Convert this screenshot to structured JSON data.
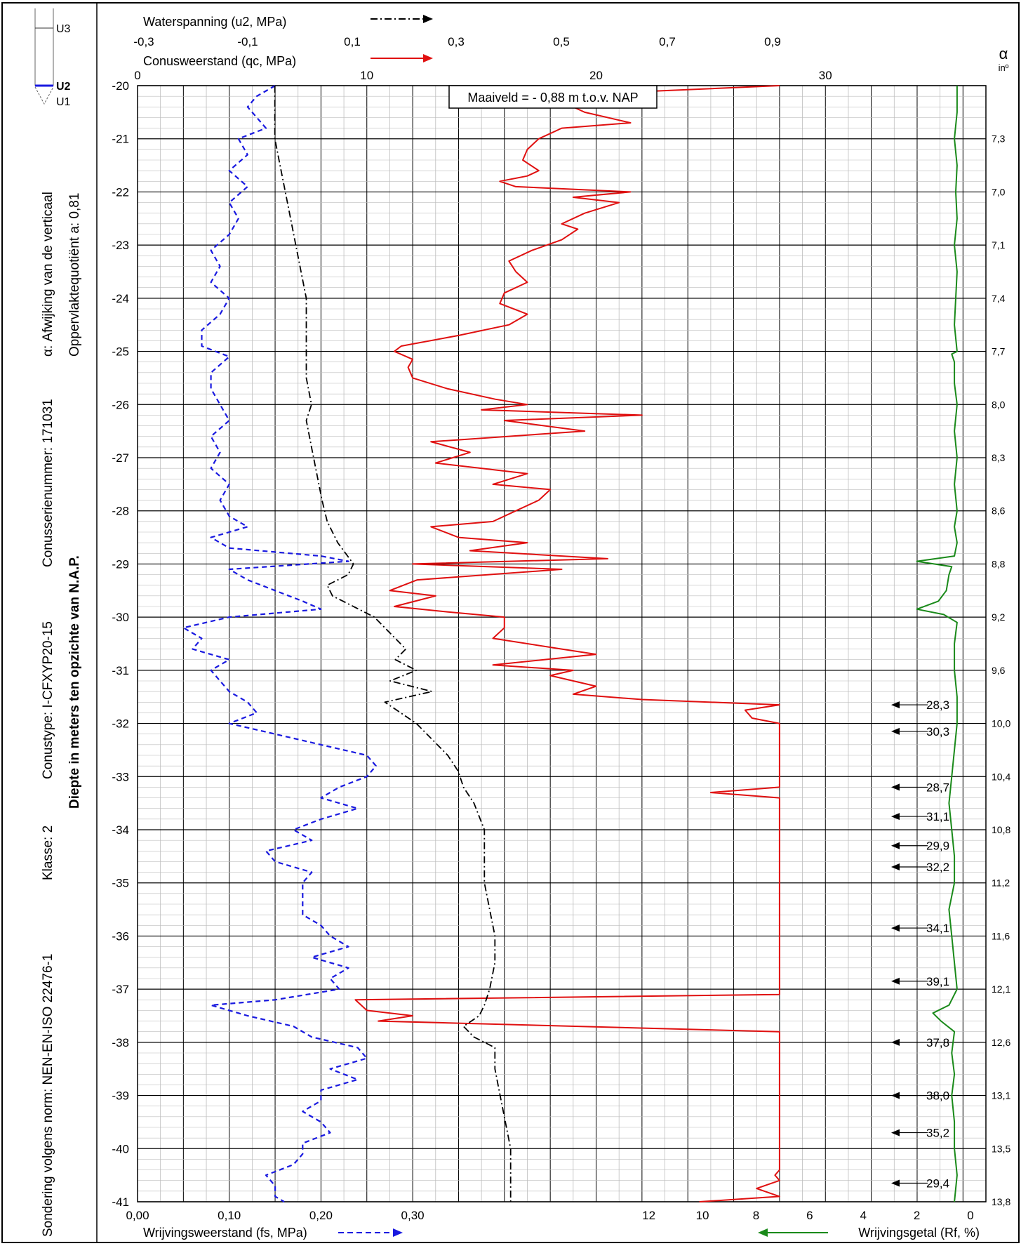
{
  "chart_data": {
    "type": "line",
    "title": "",
    "side_labels": {
      "norm": "Sondering volgens norm: NEN-EN-ISO 22476-1",
      "klasse": "Klasse: 2",
      "conustype": "Conustype: I-CFXYP20-15",
      "serienummer": "Conusserienummer: 171031",
      "alpha": "α: Afwijking van de verticaal",
      "oppervlakte": "Oppervlaktequotiënt a: 0,81",
      "depth_axis": "Diepte in meters ten opzichte van N.A.P."
    },
    "cone_legend": {
      "u3": "U3",
      "u2": "U2",
      "u1": "U1"
    },
    "ground_level": "Maaiveld = - 0,88 m t.o.v. NAP",
    "alpha_axis": {
      "symbol": "α",
      "unit": "inº"
    },
    "colors": {
      "qc": "#e01010",
      "fs": "#1a1ae0",
      "u2": "#000000",
      "rf": "#1a8a1a",
      "grid": "#000000",
      "minor_grid": "#bdbdbd",
      "u2_marker": "#1a1ae0"
    },
    "axes": {
      "depth": {
        "min": -41,
        "max": -20,
        "ticks": [
          "-20",
          "-21",
          "-22",
          "-23",
          "-24",
          "-25",
          "-26",
          "-27",
          "-28",
          "-29",
          "-30",
          "-31",
          "-32",
          "-33",
          "-34",
          "-35",
          "-36",
          "-37",
          "-38",
          "-39",
          "-40",
          "-41"
        ]
      },
      "u2": {
        "label": "Waterspanning (u2, MPa)",
        "min": -0.3,
        "max": 0.9,
        "ticks": [
          "-0,3",
          "-0,1",
          "0,1",
          "0,3",
          "0,5",
          "0,7",
          "0,9"
        ],
        "tick_values": [
          -0.3,
          -0.1,
          0.1,
          0.3,
          0.5,
          0.7,
          0.9
        ]
      },
      "qc": {
        "label": "Conusweerstand (qc, MPa)",
        "min": 0,
        "max": 30,
        "ticks": [
          "0",
          "10",
          "20",
          "30"
        ],
        "tick_values": [
          0,
          10,
          20,
          30
        ]
      },
      "fs": {
        "label": "Wrijvingsweerstand (fs, MPa)",
        "min": 0,
        "max": 0.3,
        "ticks": [
          "0,00",
          "0,10",
          "0,20",
          "0,30"
        ],
        "tick_values": [
          0,
          0.1,
          0.2,
          0.3
        ]
      },
      "rf": {
        "label": "Wrijvingsgetal (Rf, %)",
        "ticks": [
          "12",
          "10",
          "8",
          "6",
          "4",
          "2",
          "0"
        ],
        "tick_values": [
          12,
          10,
          8,
          6,
          4,
          2,
          0
        ]
      }
    },
    "alpha_values": [
      {
        "depth": -21,
        "label": "7,3"
      },
      {
        "depth": -22,
        "label": "7,0"
      },
      {
        "depth": -23,
        "label": "7,1"
      },
      {
        "depth": -24,
        "label": "7,4"
      },
      {
        "depth": -25,
        "label": "7,7"
      },
      {
        "depth": -26,
        "label": "8,0"
      },
      {
        "depth": -27,
        "label": "8,3"
      },
      {
        "depth": -28,
        "label": "8,6"
      },
      {
        "depth": -29,
        "label": "8,8"
      },
      {
        "depth": -30,
        "label": "9,2"
      },
      {
        "depth": -31,
        "label": "9,6"
      },
      {
        "depth": -32,
        "label": "10,0"
      },
      {
        "depth": -33,
        "label": "10,4"
      },
      {
        "depth": -34,
        "label": "10,8"
      },
      {
        "depth": -35,
        "label": "11,2"
      },
      {
        "depth": -36,
        "label": "11,6"
      },
      {
        "depth": -37,
        "label": "12,1"
      },
      {
        "depth": -38,
        "label": "12,6"
      },
      {
        "depth": -39,
        "label": "13,1"
      },
      {
        "depth": -40,
        "label": "13,5"
      },
      {
        "depth": -41,
        "label": "13,8"
      }
    ],
    "qc_cutoff_annotations": [
      {
        "depth": -31.65,
        "label": "28,3"
      },
      {
        "depth": -32.15,
        "label": "30,3"
      },
      {
        "depth": -33.2,
        "label": "28,7"
      },
      {
        "depth": -33.75,
        "label": "31,1"
      },
      {
        "depth": -34.3,
        "label": "29,9"
      },
      {
        "depth": -34.7,
        "label": "32,2"
      },
      {
        "depth": -35.85,
        "label": "34,1"
      },
      {
        "depth": -36.85,
        "label": "39,1"
      },
      {
        "depth": -38.0,
        "label": "37,8"
      },
      {
        "depth": -39.0,
        "label": "38,0"
      },
      {
        "depth": -39.7,
        "label": "35,2"
      },
      {
        "depth": -40.65,
        "label": "29,4"
      }
    ],
    "series": [
      {
        "name": "qc",
        "depth": [
          -20,
          -20.15,
          -20.3,
          -20.5,
          -20.7,
          -20.8,
          -21.0,
          -21.2,
          -21.4,
          -21.6,
          -21.7,
          -21.8,
          -21.9,
          -22.0,
          -22.1,
          -22.2,
          -22.4,
          -22.6,
          -22.7,
          -22.9,
          -23.1,
          -23.3,
          -23.5,
          -23.7,
          -23.9,
          -24.1,
          -24.3,
          -24.5,
          -24.7,
          -24.9,
          -25.0,
          -25.15,
          -25.3,
          -25.5,
          -25.7,
          -25.9,
          -26.0,
          -26.1,
          -26.2,
          -26.3,
          -26.5,
          -26.7,
          -26.9,
          -27.1,
          -27.3,
          -27.5,
          -27.6,
          -27.8,
          -28.0,
          -28.2,
          -28.3,
          -28.5,
          -28.6,
          -28.75,
          -28.9,
          -29.0,
          -29.1,
          -29.3,
          -29.5,
          -29.6,
          -29.8,
          -29.9,
          -30.0,
          -30.2,
          -30.4,
          -30.6,
          -30.7,
          -30.9,
          -31.0,
          -31.1,
          -31.3,
          -31.45,
          -31.55,
          -31.65,
          -31.75,
          -31.9,
          -32.0,
          -32.15,
          -33.2,
          -33.3,
          -33.4,
          -34.0,
          -34.1,
          -34.2,
          -35.0,
          -35.05,
          -35.5,
          -35.6,
          -37.1,
          -37.2,
          -37.4,
          -37.5,
          -37.6,
          -37.8,
          -40.4,
          -40.5,
          -40.6,
          -40.75,
          -40.9,
          -41.0
        ],
        "values": [
          28.5,
          20,
          18.5,
          19.5,
          21.5,
          18.5,
          17.5,
          17,
          16.8,
          17.5,
          17,
          15.8,
          16.5,
          21.5,
          19,
          21,
          19.5,
          18.5,
          19.2,
          18.5,
          17.2,
          16.2,
          16.5,
          17,
          16,
          15.8,
          17,
          16.2,
          14,
          11.5,
          11.2,
          12,
          11.8,
          12,
          13.5,
          15.6,
          17,
          15,
          22,
          16,
          19.5,
          12.8,
          14.5,
          13,
          17,
          15.5,
          18,
          17.5,
          16.5,
          15.5,
          12.8,
          14,
          17,
          14.5,
          20.5,
          12,
          18.5,
          12.2,
          11,
          13,
          11.2,
          13.5,
          16,
          16,
          15.5,
          18.5,
          20,
          15.5,
          19,
          18,
          20,
          19,
          22,
          28.3,
          26.5,
          26.8,
          28,
          30.3,
          28.7,
          25,
          28.7,
          31.1,
          30,
          29.9,
          31.5,
          29.5,
          31,
          32.2,
          39.1,
          9.5,
          10,
          12,
          10.5,
          37.8,
          35.2,
          27.8,
          29.4,
          27,
          29,
          24.5
        ]
      },
      {
        "name": "fs",
        "depth": [
          -20,
          -20.2,
          -20.4,
          -20.6,
          -20.8,
          -21.0,
          -21.3,
          -21.6,
          -21.9,
          -22.2,
          -22.5,
          -22.8,
          -23.1,
          -23.4,
          -23.7,
          -24.0,
          -24.3,
          -24.6,
          -24.9,
          -25.1,
          -25.4,
          -25.7,
          -26.0,
          -26.3,
          -26.6,
          -26.9,
          -27.2,
          -27.5,
          -27.8,
          -28.1,
          -28.3,
          -28.5,
          -28.7,
          -28.85,
          -28.95,
          -29.1,
          -29.3,
          -29.5,
          -29.7,
          -29.85,
          -30.0,
          -30.2,
          -30.4,
          -30.6,
          -30.8,
          -31.0,
          -31.2,
          -31.4,
          -31.6,
          -31.8,
          -32.0,
          -32.2,
          -32.4,
          -32.6,
          -32.8,
          -33.0,
          -33.2,
          -33.4,
          -33.6,
          -33.8,
          -34.0,
          -34.2,
          -34.4,
          -34.6,
          -34.8,
          -35.0,
          -35.2,
          -35.4,
          -35.6,
          -35.8,
          -36.0,
          -36.2,
          -36.4,
          -36.6,
          -36.8,
          -37.0,
          -37.2,
          -37.3,
          -37.5,
          -37.7,
          -37.9,
          -38.1,
          -38.3,
          -38.5,
          -38.7,
          -38.9,
          -39.1,
          -39.3,
          -39.5,
          -39.7,
          -39.9,
          -40.1,
          -40.3,
          -40.5,
          -40.7,
          -40.9,
          -41.0
        ],
        "values": [
          0.15,
          0.13,
          0.12,
          0.13,
          0.14,
          0.11,
          0.12,
          0.1,
          0.12,
          0.1,
          0.11,
          0.1,
          0.08,
          0.09,
          0.08,
          0.1,
          0.09,
          0.07,
          0.07,
          0.1,
          0.08,
          0.08,
          0.09,
          0.1,
          0.08,
          0.09,
          0.08,
          0.1,
          0.09,
          0.1,
          0.12,
          0.08,
          0.1,
          0.2,
          0.23,
          0.1,
          0.12,
          0.15,
          0.18,
          0.2,
          0.1,
          0.05,
          0.07,
          0.06,
          0.1,
          0.08,
          0.09,
          0.1,
          0.12,
          0.13,
          0.1,
          0.15,
          0.2,
          0.25,
          0.26,
          0.25,
          0.22,
          0.2,
          0.24,
          0.2,
          0.17,
          0.19,
          0.14,
          0.15,
          0.19,
          0.18,
          0.18,
          0.18,
          0.18,
          0.2,
          0.21,
          0.23,
          0.19,
          0.23,
          0.21,
          0.22,
          0.15,
          0.08,
          0.12,
          0.17,
          0.19,
          0.24,
          0.25,
          0.21,
          0.24,
          0.2,
          0.2,
          0.18,
          0.2,
          0.21,
          0.18,
          0.18,
          0.17,
          0.14,
          0.15,
          0.15,
          0.16
        ]
      },
      {
        "name": "u2",
        "depth": [
          -20,
          -20.5,
          -21.0,
          -21.5,
          -22.0,
          -22.5,
          -23.0,
          -23.5,
          -24.0,
          -24.5,
          -25.0,
          -25.5,
          -26.0,
          -26.3,
          -26.8,
          -27.3,
          -27.8,
          -28.2,
          -28.6,
          -29.0,
          -29.2,
          -29.4,
          -29.6,
          -29.8,
          -30.0,
          -30.3,
          -30.6,
          -30.8,
          -31.0,
          -31.2,
          -31.4,
          -31.6,
          -31.8,
          -32.0,
          -32.3,
          -32.6,
          -32.9,
          -33.2,
          -33.5,
          -34.0,
          -34.5,
          -35.0,
          -35.5,
          -36.0,
          -36.5,
          -37.0,
          -37.3,
          -37.5,
          -37.7,
          -37.9,
          -38.1,
          -38.5,
          -39.0,
          -39.5,
          -40.0,
          -40.5,
          -41.0
        ],
        "values": [
          -0.05,
          -0.05,
          -0.05,
          -0.04,
          -0.03,
          -0.02,
          -0.01,
          0.0,
          0.01,
          0.01,
          0.01,
          0.01,
          0.02,
          0.01,
          0.02,
          0.03,
          0.04,
          0.05,
          0.07,
          0.1,
          0.09,
          0.05,
          0.06,
          0.1,
          0.14,
          0.17,
          0.2,
          0.18,
          0.22,
          0.17,
          0.25,
          0.16,
          0.19,
          0.22,
          0.25,
          0.28,
          0.3,
          0.31,
          0.33,
          0.35,
          0.35,
          0.35,
          0.36,
          0.37,
          0.37,
          0.36,
          0.35,
          0.34,
          0.31,
          0.33,
          0.37,
          0.37,
          0.38,
          0.39,
          0.4,
          0.4,
          0.4
        ]
      },
      {
        "name": "rf",
        "depth": [
          -20,
          -20.5,
          -21,
          -21.5,
          -22,
          -22.5,
          -23,
          -23.5,
          -24,
          -24.5,
          -25,
          -25.05,
          -25.2,
          -25.6,
          -26,
          -26.5,
          -27,
          -27.5,
          -28,
          -28.3,
          -28.6,
          -28.85,
          -28.95,
          -29.05,
          -29.2,
          -29.5,
          -29.7,
          -29.85,
          -29.95,
          -30.1,
          -30.5,
          -31,
          -31.5,
          -32,
          -32.5,
          -33,
          -33.5,
          -34,
          -34.5,
          -35,
          -35.5,
          -36,
          -36.5,
          -37,
          -37.3,
          -37.45,
          -37.6,
          -37.8,
          -38.2,
          -38.6,
          -39,
          -39.5,
          -40,
          -40.5,
          -41
        ],
        "values": [
          0.5,
          0.5,
          0.6,
          0.5,
          0.55,
          0.5,
          0.6,
          0.5,
          0.55,
          0.6,
          0.5,
          0.7,
          0.6,
          0.6,
          0.5,
          0.6,
          0.5,
          0.6,
          0.5,
          0.6,
          0.5,
          0.6,
          2.0,
          0.7,
          0.8,
          0.9,
          1.2,
          2.0,
          1.0,
          0.5,
          0.6,
          0.6,
          0.5,
          0.5,
          0.6,
          0.7,
          0.8,
          0.7,
          0.6,
          0.6,
          0.8,
          0.7,
          0.6,
          0.5,
          0.8,
          1.4,
          1.1,
          0.6,
          0.7,
          0.6,
          0.7,
          0.6,
          0.6,
          0.5,
          0.6
        ]
      }
    ]
  }
}
